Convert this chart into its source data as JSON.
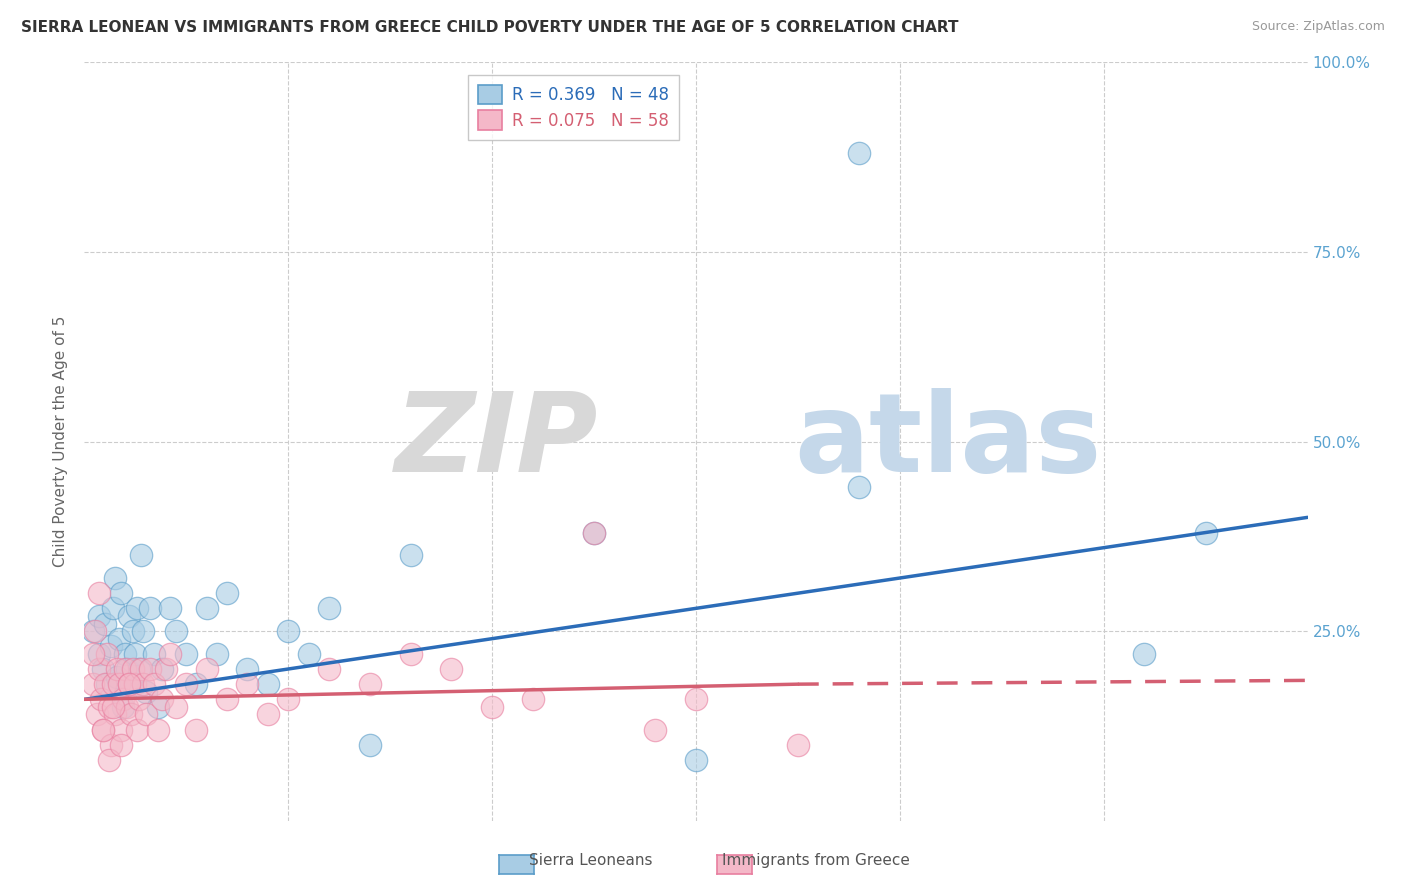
{
  "title": "SIERRA LEONEAN VS IMMIGRANTS FROM GREECE CHILD POVERTY UNDER THE AGE OF 5 CORRELATION CHART",
  "source": "Source: ZipAtlas.com",
  "ylabel": "Child Poverty Under the Age of 5",
  "xmin": 0.0,
  "xmax": 6.0,
  "ymin": 0.0,
  "ymax": 100.0,
  "sierra_R": 0.369,
  "sierra_N": 48,
  "greece_R": 0.075,
  "greece_N": 58,
  "sierra_color": "#a8cce4",
  "sierra_edge_color": "#5b9dc9",
  "greece_color": "#f4b8c8",
  "greece_edge_color": "#e87fa0",
  "sierra_trend_color": "#2b6cb8",
  "greece_trend_color": "#d45f72",
  "background_color": "#ffffff",
  "grid_color": "#cccccc",
  "title_fontsize": 11,
  "label_fontsize": 11,
  "tick_fontsize": 11,
  "legend_fontsize": 12,
  "sierra_x": [
    0.04,
    0.07,
    0.07,
    0.09,
    0.1,
    0.11,
    0.13,
    0.14,
    0.15,
    0.16,
    0.17,
    0.18,
    0.19,
    0.2,
    0.21,
    0.22,
    0.23,
    0.24,
    0.25,
    0.26,
    0.27,
    0.28,
    0.29,
    0.3,
    0.32,
    0.34,
    0.36,
    0.38,
    0.42,
    0.45,
    0.5,
    0.55,
    0.6,
    0.65,
    0.7,
    0.8,
    0.9,
    1.0,
    1.1,
    1.2,
    1.4,
    1.6,
    2.5,
    3.0,
    3.8,
    3.8,
    5.2,
    5.5
  ],
  "sierra_y": [
    25,
    22,
    27,
    20,
    26,
    18,
    23,
    28,
    32,
    19,
    24,
    30,
    15,
    22,
    20,
    27,
    18,
    25,
    22,
    28,
    20,
    35,
    25,
    17,
    28,
    22,
    15,
    20,
    28,
    25,
    22,
    18,
    28,
    22,
    30,
    20,
    18,
    25,
    22,
    28,
    10,
    35,
    38,
    8,
    88,
    44,
    22,
    38
  ],
  "greece_x": [
    0.04,
    0.06,
    0.07,
    0.08,
    0.09,
    0.1,
    0.11,
    0.12,
    0.13,
    0.14,
    0.15,
    0.16,
    0.17,
    0.18,
    0.19,
    0.2,
    0.21,
    0.22,
    0.23,
    0.24,
    0.25,
    0.26,
    0.27,
    0.28,
    0.29,
    0.3,
    0.32,
    0.34,
    0.36,
    0.38,
    0.4,
    0.42,
    0.45,
    0.5,
    0.55,
    0.6,
    0.7,
    0.8,
    0.9,
    1.0,
    1.2,
    1.4,
    1.6,
    1.8,
    2.0,
    2.2,
    2.5,
    2.8,
    3.0,
    3.5,
    0.04,
    0.05,
    0.07,
    0.09,
    0.12,
    0.14,
    0.18,
    0.22
  ],
  "greece_y": [
    18,
    14,
    20,
    16,
    12,
    18,
    22,
    15,
    10,
    18,
    14,
    20,
    18,
    12,
    16,
    20,
    15,
    18,
    14,
    20,
    18,
    12,
    16,
    20,
    18,
    14,
    20,
    18,
    12,
    16,
    20,
    22,
    15,
    18,
    12,
    20,
    16,
    18,
    14,
    16,
    20,
    18,
    22,
    20,
    15,
    16,
    38,
    12,
    16,
    10,
    22,
    25,
    30,
    12,
    8,
    15,
    10,
    18
  ]
}
